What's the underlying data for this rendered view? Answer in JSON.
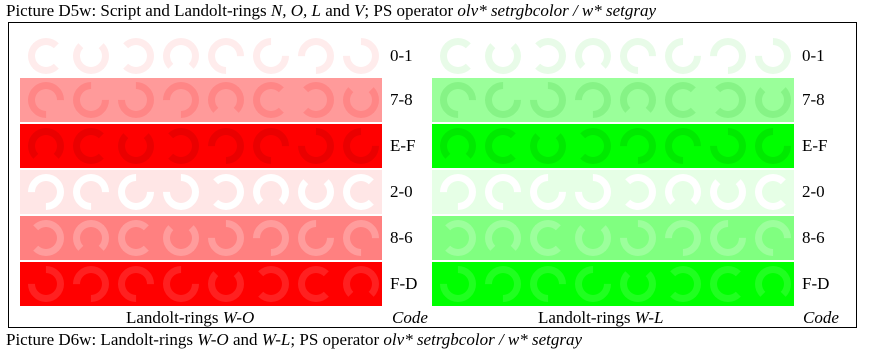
{
  "title": {
    "prefix": "Picture D5w: Script and Landolt-rings ",
    "letters": "N, O, L",
    "and": " and ",
    "letter_v": "V",
    "ps_text": "; PS operator ",
    "operator": "olv* setrgbcolor / w* setgray"
  },
  "codes": [
    "0-1",
    "7-8",
    "E-F",
    "2-0",
    "8-6",
    "F-D"
  ],
  "left_panel": {
    "footer_prefix": "Landolt-rings ",
    "footer_italic": "W-O",
    "rows": [
      {
        "bg": "#ffffff",
        "ring": "#ffecec"
      },
      {
        "bg": "#ff9a9a",
        "ring": "#ff8686"
      },
      {
        "bg": "#ff0000",
        "ring": "#ea0000"
      },
      {
        "bg": "#ffe6e6",
        "ring": "#ffffff"
      },
      {
        "bg": "#ff8080",
        "ring": "#ff9c9c"
      },
      {
        "bg": "#ff0000",
        "ring": "#ff2020"
      }
    ]
  },
  "right_panel": {
    "footer_prefix": "Landolt-rings ",
    "footer_italic": "W-L",
    "rows": [
      {
        "bg": "#ffffff",
        "ring": "#e8fbe8"
      },
      {
        "bg": "#9aff9a",
        "ring": "#86f386"
      },
      {
        "bg": "#00ff00",
        "ring": "#00ea00"
      },
      {
        "bg": "#e6ffe6",
        "ring": "#ffffff"
      },
      {
        "bg": "#80ff80",
        "ring": "#9cff9c"
      },
      {
        "bg": "#00ff00",
        "ring": "#20ff20"
      }
    ]
  },
  "code_label": "Code",
  "ring_gap_orientations": [
    0,
    270,
    180,
    90,
    45,
    315,
    135,
    225
  ],
  "bottom_text": {
    "prefix": "Picture D6w: Landolt-rings ",
    "italic1": "W-O",
    "and": " and ",
    "italic2": "W-L",
    "suffix": "; PS operator ",
    "operator": "olv* setrgbcolor / w* setgray"
  }
}
